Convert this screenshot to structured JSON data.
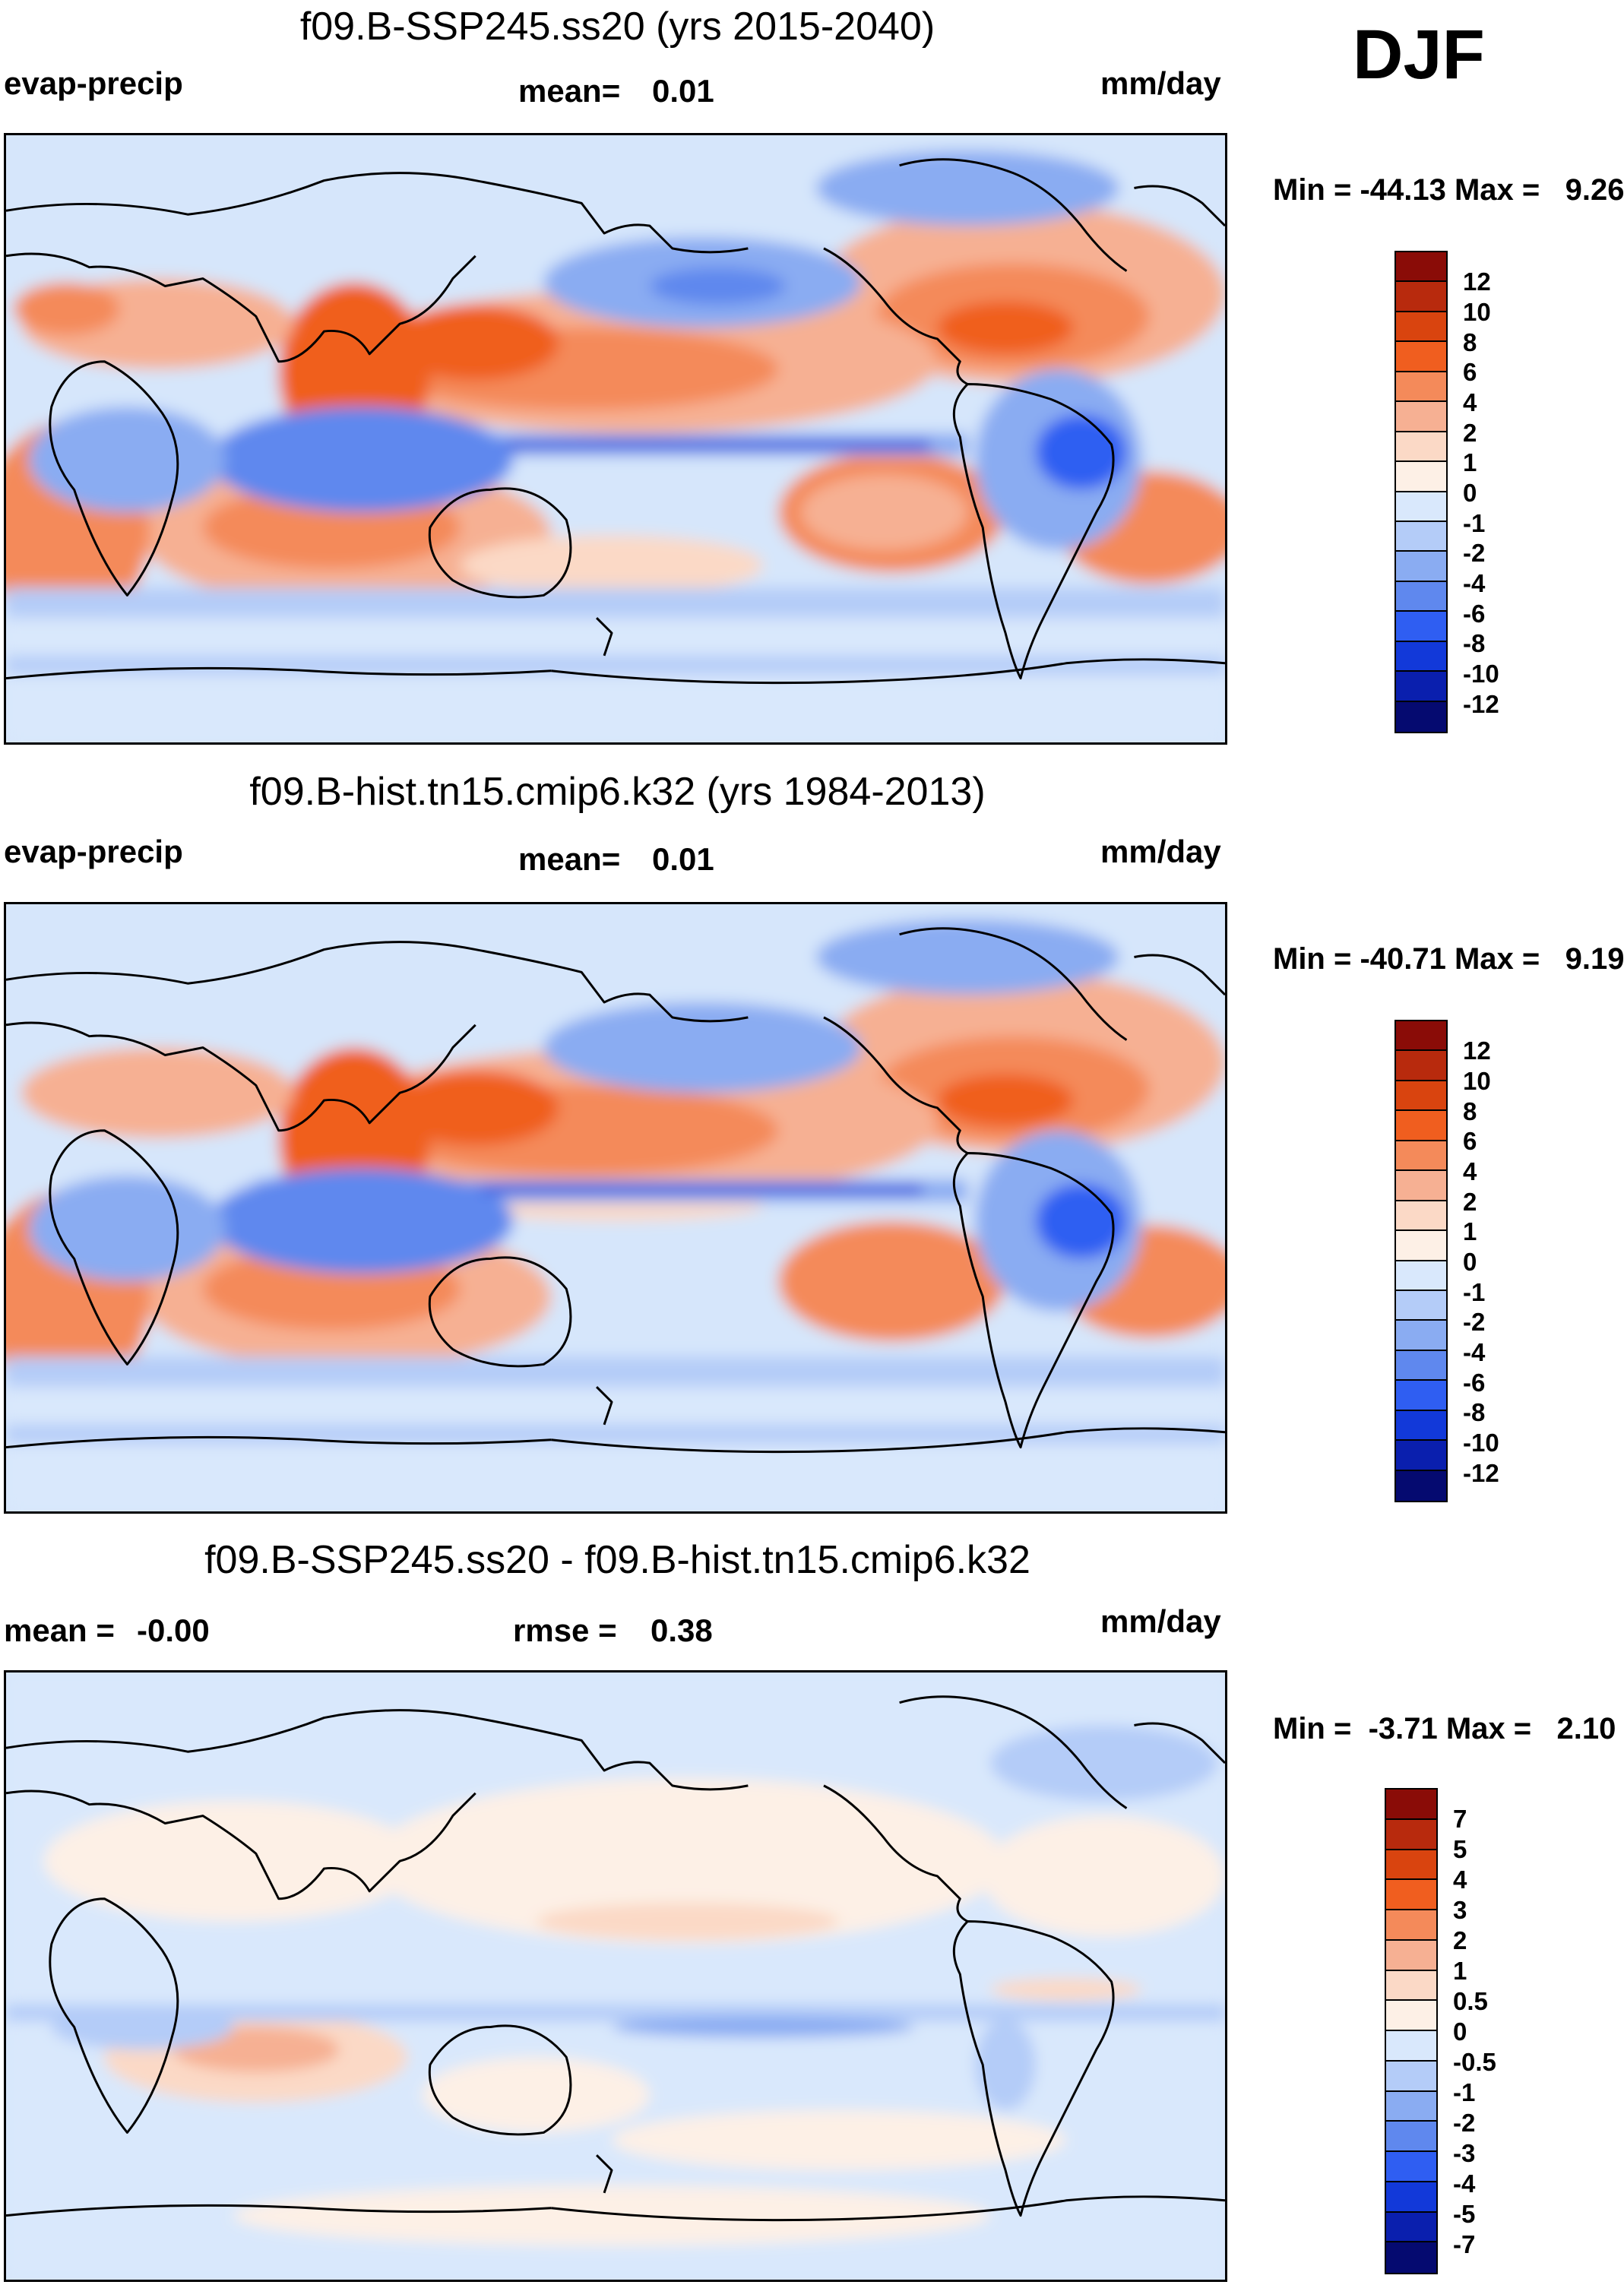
{
  "season": "DJF",
  "panels": [
    {
      "title": "f09.B-SSP245.ss20 (yrs 2015-2040)",
      "variable": "evap-precip",
      "mean_label": "mean=",
      "mean_value": "0.01",
      "units": "mm/day",
      "minmax": "Min = -44.13 Max =   9.26",
      "colorbar_labels": [
        "12",
        "10",
        "8",
        "6",
        "4",
        "2",
        "1",
        "0",
        "-1",
        "-2",
        "-4",
        "-6",
        "-8",
        "-10",
        "-12"
      ]
    },
    {
      "title": "f09.B-hist.tn15.cmip6.k32 (yrs 1984-2013)",
      "variable": "evap-precip",
      "mean_label": "mean=",
      "mean_value": "0.01",
      "units": "mm/day",
      "minmax": "Min = -40.71 Max =   9.19",
      "colorbar_labels": [
        "12",
        "10",
        "8",
        "6",
        "4",
        "2",
        "1",
        "0",
        "-1",
        "-2",
        "-4",
        "-6",
        "-8",
        "-10",
        "-12"
      ]
    },
    {
      "title": "f09.B-SSP245.ss20 - f09.B-hist.tn15.cmip6.k32",
      "mean_label": "mean =",
      "mean_value": "-0.00",
      "rmse_label": "rmse =",
      "rmse_value": "0.38",
      "units": "mm/day",
      "minmax": "Min =  -3.71 Max =   2.10",
      "colorbar_labels": [
        "7",
        "5",
        "4",
        "3",
        "2",
        "1",
        "0.5",
        "0",
        "-0.5",
        "-1",
        "-2",
        "-3",
        "-4",
        "-5",
        "-7"
      ]
    }
  ],
  "colors": {
    "colorbar": [
      "#8a0c07",
      "#b82a0d",
      "#d9440f",
      "#f05e1f",
      "#f48a5a",
      "#f6b093",
      "#fbd9c6",
      "#fdf0e6",
      "#d9e8fc",
      "#b4ccf8",
      "#8aacf2",
      "#5f88ee",
      "#2f5ef2",
      "#1239d9",
      "#0a1fae",
      "#050a70"
    ],
    "ocean": "#d6e6fb",
    "coast": "#000000"
  }
}
